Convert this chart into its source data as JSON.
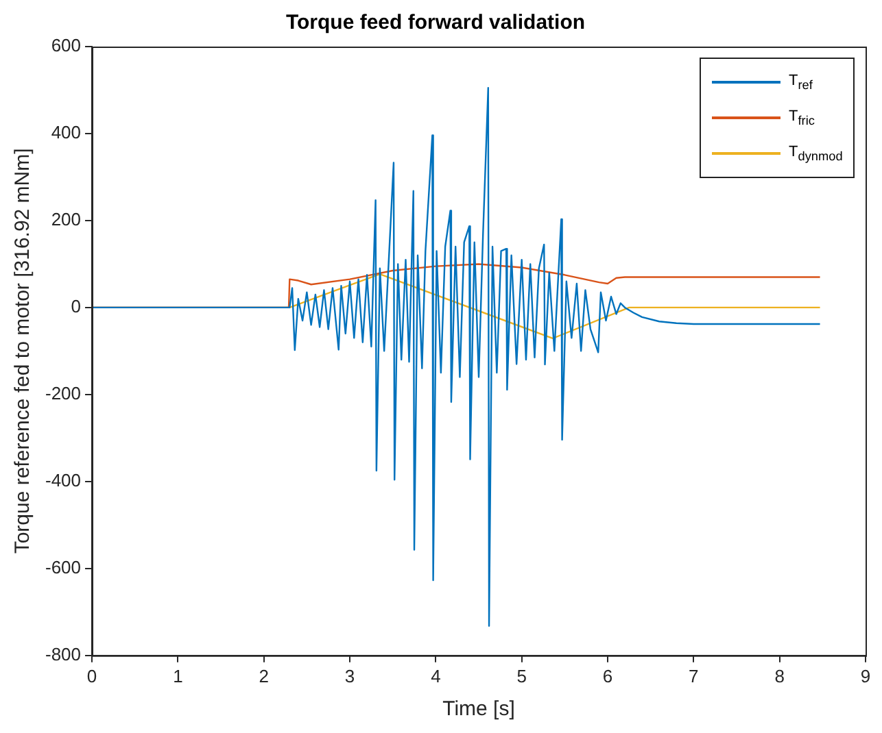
{
  "chart_data": {
    "type": "line",
    "title": "Torque feed forward validation",
    "xlabel": "Time [s]",
    "ylabel": "Torque reference fed to motor [316.92 mNm]",
    "xlim": [
      0,
      9
    ],
    "xticks": [
      0,
      1,
      2,
      3,
      4,
      5,
      6,
      7,
      8,
      9
    ],
    "ylim": [
      -800,
      600
    ],
    "yticks": [
      -800,
      -600,
      -400,
      -200,
      0,
      200,
      400,
      600
    ],
    "grid": false,
    "legend": "top right",
    "marker": "none",
    "line_style": "solid",
    "series": [
      {
        "name": "T$_{ref}$",
        "color": "#0072bd",
        "x": [
          0,
          2.3,
          2.33,
          2.36,
          2.4,
          2.45,
          2.5,
          2.55,
          2.6,
          2.65,
          2.7,
          2.75,
          2.8,
          2.87,
          2.9,
          2.95,
          3.0,
          3.05,
          3.1,
          3.15,
          3.2,
          3.25,
          3.3,
          3.31,
          3.35,
          3.4,
          3.45,
          3.51,
          3.52,
          3.56,
          3.6,
          3.65,
          3.69,
          3.74,
          3.75,
          3.79,
          3.84,
          3.88,
          3.96,
          3.97,
          4.01,
          4.06,
          4.11,
          4.17,
          4.18,
          4.23,
          4.28,
          4.33,
          4.39,
          4.4,
          4.45,
          4.5,
          4.55,
          4.61,
          4.62,
          4.66,
          4.71,
          4.76,
          4.82,
          4.83,
          4.88,
          4.94,
          5.0,
          5.05,
          5.1,
          5.15,
          5.2,
          5.26,
          5.27,
          5.32,
          5.38,
          5.46,
          5.47,
          5.52,
          5.58,
          5.64,
          5.69,
          5.74,
          5.8,
          5.89,
          5.92,
          5.98,
          6.04,
          6.1,
          6.15,
          6.2,
          6.3,
          6.4,
          6.6,
          6.8,
          7.0,
          8.47
        ],
        "values": [
          0,
          0,
          45,
          -98,
          20,
          -30,
          35,
          -40,
          30,
          -45,
          40,
          -50,
          45,
          -97,
          50,
          -60,
          60,
          -70,
          65,
          -80,
          75,
          -90,
          247,
          -375,
          90,
          -100,
          95,
          333,
          -396,
          100,
          -120,
          110,
          -125,
          268,
          -557,
          120,
          -140,
          130,
          396,
          -627,
          130,
          -150,
          140,
          223,
          -217,
          140,
          -160,
          150,
          187,
          -349,
          150,
          -160,
          170,
          505,
          -732,
          140,
          -150,
          130,
          135,
          -189,
          120,
          -130,
          110,
          -120,
          100,
          -115,
          90,
          145,
          -131,
          80,
          -100,
          203,
          -304,
          60,
          -70,
          55,
          -100,
          40,
          -50,
          -103,
          35,
          -30,
          25,
          -15,
          10,
          0,
          -12,
          -22,
          -32,
          -36,
          -38,
          -38
        ]
      },
      {
        "name": "T$_{fric}$",
        "color": "#d95319",
        "x": [
          0,
          2.29,
          2.3,
          2.4,
          2.55,
          3.0,
          3.5,
          4.0,
          4.5,
          5.0,
          5.5,
          5.9,
          6.0,
          6.1,
          6.2,
          8.47
        ],
        "values": [
          0,
          0,
          65,
          62,
          53,
          65,
          85,
          95,
          100,
          92,
          75,
          58,
          55,
          68,
          70,
          70
        ]
      },
      {
        "name": "T$_{dynmod}$",
        "color": "#edb120",
        "x": [
          0,
          2.3,
          3.35,
          5.36,
          6.25,
          8.47
        ],
        "values": [
          0,
          0,
          77,
          -71,
          0,
          0
        ]
      }
    ]
  }
}
